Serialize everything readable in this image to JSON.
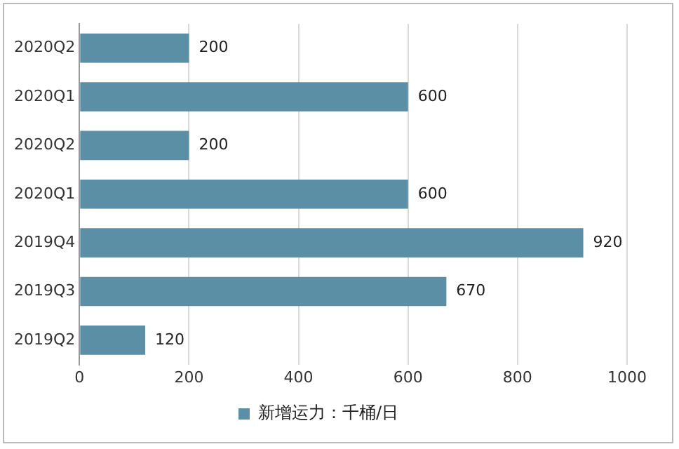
{
  "chart_data": {
    "type": "bar",
    "orientation": "horizontal",
    "categories": [
      "2020Q2",
      "2020Q1",
      "2020Q2",
      "2020Q1",
      "2019Q4",
      "2019Q3",
      "2019Q2"
    ],
    "series": [
      {
        "name": "新增运力：千桶/日",
        "color": "#5b8fa6",
        "values": [
          200,
          600,
          200,
          600,
          920,
          670,
          120
        ]
      }
    ],
    "xlim": [
      0,
      1000
    ],
    "xticks": [
      0,
      200,
      400,
      600,
      800,
      1000
    ],
    "grid": "x",
    "legend": "bottom",
    "data_labels": true
  }
}
